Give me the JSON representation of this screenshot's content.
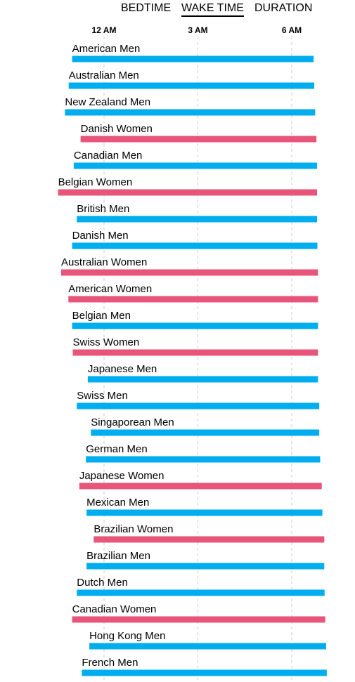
{
  "tabs": [
    {
      "label": "BEDTIME",
      "active": false
    },
    {
      "label": "WAKE TIME",
      "active": true
    },
    {
      "label": "DURATION",
      "active": false
    }
  ],
  "colors": {
    "men": "#00aeef",
    "women": "#e8557a",
    "grid": "#cccccc"
  },
  "chart_data": {
    "type": "bar",
    "orientation": "horizontal-range",
    "x_ticks": [
      "12 AM",
      "3 AM",
      "6 AM"
    ],
    "x_tick_values": [
      0,
      3,
      6
    ],
    "x_unit": "hours after midnight",
    "xlim": [
      -1.5,
      7.2
    ],
    "grid": true,
    "categories": [
      "American Men",
      "Australian Men",
      "New Zealand Men",
      "Danish Women",
      "Canadian Men",
      "Belgian Women",
      "British Men",
      "Danish Men",
      "Australian Women",
      "American Women",
      "Belgian Men",
      "Swiss Women",
      "Japanese Men",
      "Swiss Men",
      "Singaporean Men",
      "German Men",
      "Japanese Women",
      "Mexican Men",
      "Brazilian Women",
      "Brazilian Men",
      "Dutch Men",
      "Canadian Women",
      "Hong Kong Men",
      "French Men"
    ],
    "groups": [
      "men",
      "men",
      "men",
      "women",
      "men",
      "women",
      "men",
      "men",
      "women",
      "women",
      "men",
      "women",
      "men",
      "men",
      "men",
      "men",
      "women",
      "men",
      "women",
      "men",
      "men",
      "women",
      "men",
      "men"
    ],
    "bedtime": [
      -1.02,
      -1.13,
      -1.25,
      -0.75,
      -0.97,
      -1.47,
      -0.87,
      -1.02,
      -1.37,
      -1.14,
      -1.02,
      -1.0,
      -0.52,
      -0.87,
      -0.42,
      -0.58,
      -0.79,
      -0.56,
      -0.33,
      -0.56,
      -0.87,
      -1.02,
      -0.47,
      -0.71
    ],
    "wake_time": [
      6.7,
      6.72,
      6.75,
      6.79,
      6.81,
      6.81,
      6.81,
      6.82,
      6.84,
      6.84,
      6.84,
      6.84,
      6.84,
      6.88,
      6.88,
      6.91,
      6.96,
      6.98,
      7.04,
      7.04,
      7.05,
      7.07,
      7.1,
      7.12
    ]
  }
}
